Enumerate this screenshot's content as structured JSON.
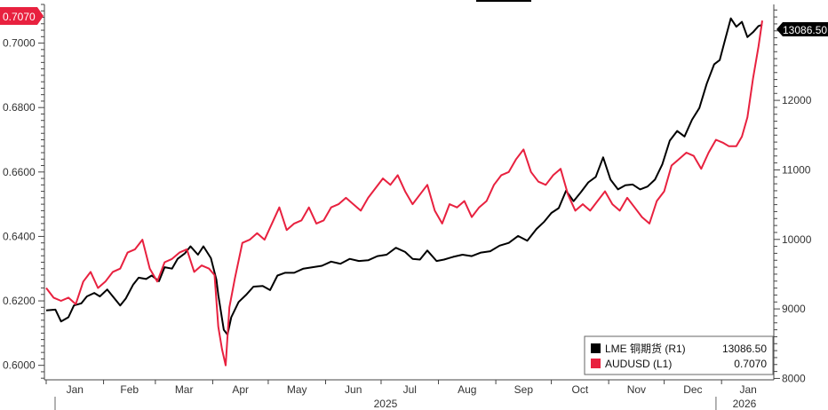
{
  "chart_data": {
    "type": "line",
    "title": "",
    "x_axis": {
      "months": [
        "Jan",
        "Feb",
        "Mar",
        "Apr",
        "May",
        "Jun",
        "Jul",
        "Aug",
        "Sep",
        "Oct",
        "Nov",
        "Dec",
        "Jan"
      ],
      "years": [
        "2025",
        "2026"
      ],
      "range": [
        "2025-01-01",
        "2026-01-23"
      ]
    },
    "left_axis": {
      "series_ref": "L1",
      "ylim": [
        0.5955,
        0.712
      ],
      "ticks": [
        "0.6000",
        "0.6200",
        "0.6400",
        "0.6600",
        "0.6800",
        "0.7000"
      ]
    },
    "right_axis": {
      "series_ref": "R1",
      "ylim": [
        7980,
        13380
      ],
      "ticks": [
        "8000",
        "9000",
        "10000",
        "11000",
        "12000"
      ]
    },
    "last_value_tags": {
      "left": "0.7070",
      "right": "13086.50"
    },
    "legend": {
      "placement": "bottom-right",
      "entries": [
        {
          "label": "LME 铜期货 (R1)",
          "value": "13086.50",
          "color": "#000000"
        },
        {
          "label": "AUDUSD (L1)",
          "value": "0.7070",
          "color": "#e8213f"
        }
      ]
    },
    "series": [
      {
        "name": "LME 铜期货 (R1)",
        "axis": "right",
        "color": "#000000",
        "points": [
          [
            "2025-01-01",
            8980
          ],
          [
            "2025-01-06",
            8990
          ],
          [
            "2025-01-09",
            8820
          ],
          [
            "2025-01-13",
            8880
          ],
          [
            "2025-01-16",
            9050
          ],
          [
            "2025-01-20",
            9080
          ],
          [
            "2025-01-23",
            9180
          ],
          [
            "2025-01-27",
            9230
          ],
          [
            "2025-01-30",
            9180
          ],
          [
            "2025-02-03",
            9280
          ],
          [
            "2025-02-06",
            9180
          ],
          [
            "2025-02-10",
            9050
          ],
          [
            "2025-02-13",
            9150
          ],
          [
            "2025-02-17",
            9350
          ],
          [
            "2025-02-20",
            9450
          ],
          [
            "2025-02-24",
            9430
          ],
          [
            "2025-02-27",
            9480
          ],
          [
            "2025-03-03",
            9400
          ],
          [
            "2025-03-06",
            9600
          ],
          [
            "2025-03-10",
            9580
          ],
          [
            "2025-03-13",
            9720
          ],
          [
            "2025-03-17",
            9800
          ],
          [
            "2025-03-20",
            9900
          ],
          [
            "2025-03-24",
            9780
          ],
          [
            "2025-03-27",
            9900
          ],
          [
            "2025-03-31",
            9730
          ],
          [
            "2025-04-03",
            9420
          ],
          [
            "2025-04-04",
            9200
          ],
          [
            "2025-04-07",
            8700
          ],
          [
            "2025-04-09",
            8630
          ],
          [
            "2025-04-11",
            8880
          ],
          [
            "2025-04-15",
            9100
          ],
          [
            "2025-04-19",
            9200
          ],
          [
            "2025-04-23",
            9320
          ],
          [
            "2025-04-28",
            9330
          ],
          [
            "2025-05-02",
            9270
          ],
          [
            "2025-05-06",
            9480
          ],
          [
            "2025-05-10",
            9520
          ],
          [
            "2025-05-15",
            9520
          ],
          [
            "2025-05-20",
            9580
          ],
          [
            "2025-05-25",
            9600
          ],
          [
            "2025-05-30",
            9620
          ],
          [
            "2025-06-04",
            9680
          ],
          [
            "2025-06-09",
            9650
          ],
          [
            "2025-06-14",
            9720
          ],
          [
            "2025-06-19",
            9690
          ],
          [
            "2025-06-24",
            9700
          ],
          [
            "2025-06-29",
            9760
          ],
          [
            "2025-07-04",
            9780
          ],
          [
            "2025-07-09",
            9880
          ],
          [
            "2025-07-14",
            9820
          ],
          [
            "2025-07-18",
            9720
          ],
          [
            "2025-07-22",
            9710
          ],
          [
            "2025-07-26",
            9840
          ],
          [
            "2025-07-31",
            9690
          ],
          [
            "2025-08-04",
            9710
          ],
          [
            "2025-08-09",
            9750
          ],
          [
            "2025-08-14",
            9780
          ],
          [
            "2025-08-19",
            9760
          ],
          [
            "2025-08-24",
            9810
          ],
          [
            "2025-08-29",
            9830
          ],
          [
            "2025-09-03",
            9910
          ],
          [
            "2025-09-08",
            9950
          ],
          [
            "2025-09-13",
            10050
          ],
          [
            "2025-09-18",
            9980
          ],
          [
            "2025-09-23",
            10150
          ],
          [
            "2025-09-27",
            10250
          ],
          [
            "2025-10-01",
            10380
          ],
          [
            "2025-10-05",
            10450
          ],
          [
            "2025-10-09",
            10700
          ],
          [
            "2025-10-13",
            10550
          ],
          [
            "2025-10-17",
            10680
          ],
          [
            "2025-10-21",
            10820
          ],
          [
            "2025-10-25",
            10900
          ],
          [
            "2025-10-29",
            11180
          ],
          [
            "2025-11-02",
            10860
          ],
          [
            "2025-11-06",
            10720
          ],
          [
            "2025-11-10",
            10780
          ],
          [
            "2025-11-14",
            10790
          ],
          [
            "2025-11-18",
            10720
          ],
          [
            "2025-11-22",
            10760
          ],
          [
            "2025-11-26",
            10860
          ],
          [
            "2025-11-30",
            11080
          ],
          [
            "2025-12-04",
            11420
          ],
          [
            "2025-12-08",
            11560
          ],
          [
            "2025-12-12",
            11480
          ],
          [
            "2025-12-16",
            11720
          ],
          [
            "2025-12-20",
            11890
          ],
          [
            "2025-12-24",
            12240
          ],
          [
            "2025-12-28",
            12520
          ],
          [
            "2025-12-31",
            12580
          ],
          [
            "2026-01-03",
            12880
          ],
          [
            "2026-01-06",
            13180
          ],
          [
            "2026-01-09",
            13060
          ],
          [
            "2026-01-12",
            13130
          ],
          [
            "2026-01-15",
            12910
          ],
          [
            "2026-01-18",
            12980
          ],
          [
            "2026-01-21",
            13070
          ],
          [
            "2026-01-23",
            13086.5
          ]
        ]
      },
      {
        "name": "AUDUSD (L1)",
        "axis": "left",
        "color": "#e8213f",
        "points": [
          [
            "2025-01-01",
            0.624
          ],
          [
            "2025-01-05",
            0.621
          ],
          [
            "2025-01-09",
            0.62
          ],
          [
            "2025-01-13",
            0.621
          ],
          [
            "2025-01-17",
            0.619
          ],
          [
            "2025-01-21",
            0.626
          ],
          [
            "2025-01-25",
            0.629
          ],
          [
            "2025-01-29",
            0.624
          ],
          [
            "2025-02-02",
            0.626
          ],
          [
            "2025-02-06",
            0.629
          ],
          [
            "2025-02-10",
            0.63
          ],
          [
            "2025-02-14",
            0.635
          ],
          [
            "2025-02-18",
            0.636
          ],
          [
            "2025-02-22",
            0.639
          ],
          [
            "2025-02-26",
            0.63
          ],
          [
            "2025-03-02",
            0.626
          ],
          [
            "2025-03-06",
            0.632
          ],
          [
            "2025-03-10",
            0.633
          ],
          [
            "2025-03-14",
            0.635
          ],
          [
            "2025-03-18",
            0.636
          ],
          [
            "2025-03-22",
            0.629
          ],
          [
            "2025-03-26",
            0.631
          ],
          [
            "2025-03-30",
            0.63
          ],
          [
            "2025-04-02",
            0.628
          ],
          [
            "2025-04-04",
            0.612
          ],
          [
            "2025-04-06",
            0.605
          ],
          [
            "2025-04-08",
            0.6
          ],
          [
            "2025-04-10",
            0.618
          ],
          [
            "2025-04-13",
            0.627
          ],
          [
            "2025-04-17",
            0.638
          ],
          [
            "2025-04-21",
            0.639
          ],
          [
            "2025-04-25",
            0.641
          ],
          [
            "2025-04-29",
            0.639
          ],
          [
            "2025-05-03",
            0.644
          ],
          [
            "2025-05-07",
            0.649
          ],
          [
            "2025-05-11",
            0.642
          ],
          [
            "2025-05-15",
            0.644
          ],
          [
            "2025-05-19",
            0.645
          ],
          [
            "2025-05-23",
            0.649
          ],
          [
            "2025-05-27",
            0.644
          ],
          [
            "2025-05-31",
            0.645
          ],
          [
            "2025-06-04",
            0.649
          ],
          [
            "2025-06-08",
            0.65
          ],
          [
            "2025-06-12",
            0.652
          ],
          [
            "2025-06-16",
            0.65
          ],
          [
            "2025-06-20",
            0.648
          ],
          [
            "2025-06-24",
            0.652
          ],
          [
            "2025-06-28",
            0.655
          ],
          [
            "2025-07-02",
            0.658
          ],
          [
            "2025-07-06",
            0.656
          ],
          [
            "2025-07-10",
            0.659
          ],
          [
            "2025-07-14",
            0.654
          ],
          [
            "2025-07-18",
            0.65
          ],
          [
            "2025-07-22",
            0.653
          ],
          [
            "2025-07-26",
            0.656
          ],
          [
            "2025-07-30",
            0.648
          ],
          [
            "2025-08-03",
            0.644
          ],
          [
            "2025-08-07",
            0.65
          ],
          [
            "2025-08-11",
            0.649
          ],
          [
            "2025-08-15",
            0.651
          ],
          [
            "2025-08-19",
            0.646
          ],
          [
            "2025-08-23",
            0.649
          ],
          [
            "2025-08-27",
            0.651
          ],
          [
            "2025-08-31",
            0.656
          ],
          [
            "2025-09-04",
            0.659
          ],
          [
            "2025-09-08",
            0.66
          ],
          [
            "2025-09-12",
            0.664
          ],
          [
            "2025-09-16",
            0.667
          ],
          [
            "2025-09-20",
            0.66
          ],
          [
            "2025-09-24",
            0.657
          ],
          [
            "2025-09-28",
            0.656
          ],
          [
            "2025-10-02",
            0.659
          ],
          [
            "2025-10-06",
            0.661
          ],
          [
            "2025-10-10",
            0.653
          ],
          [
            "2025-10-14",
            0.648
          ],
          [
            "2025-10-18",
            0.65
          ],
          [
            "2025-10-22",
            0.648
          ],
          [
            "2025-10-26",
            0.651
          ],
          [
            "2025-10-30",
            0.654
          ],
          [
            "2025-11-03",
            0.65
          ],
          [
            "2025-11-07",
            0.648
          ],
          [
            "2025-11-11",
            0.652
          ],
          [
            "2025-11-15",
            0.649
          ],
          [
            "2025-11-19",
            0.646
          ],
          [
            "2025-11-23",
            0.644
          ],
          [
            "2025-11-27",
            0.651
          ],
          [
            "2025-12-01",
            0.654
          ],
          [
            "2025-12-05",
            0.662
          ],
          [
            "2025-12-09",
            0.664
          ],
          [
            "2025-12-13",
            0.666
          ],
          [
            "2025-12-17",
            0.665
          ],
          [
            "2025-12-21",
            0.661
          ],
          [
            "2025-12-25",
            0.666
          ],
          [
            "2025-12-29",
            0.67
          ],
          [
            "2026-01-02",
            0.669
          ],
          [
            "2026-01-05",
            0.668
          ],
          [
            "2026-01-09",
            0.668
          ],
          [
            "2026-01-12",
            0.671
          ],
          [
            "2026-01-15",
            0.677
          ],
          [
            "2026-01-18",
            0.689
          ],
          [
            "2026-01-21",
            0.699
          ],
          [
            "2026-01-23",
            0.707
          ]
        ]
      }
    ]
  }
}
